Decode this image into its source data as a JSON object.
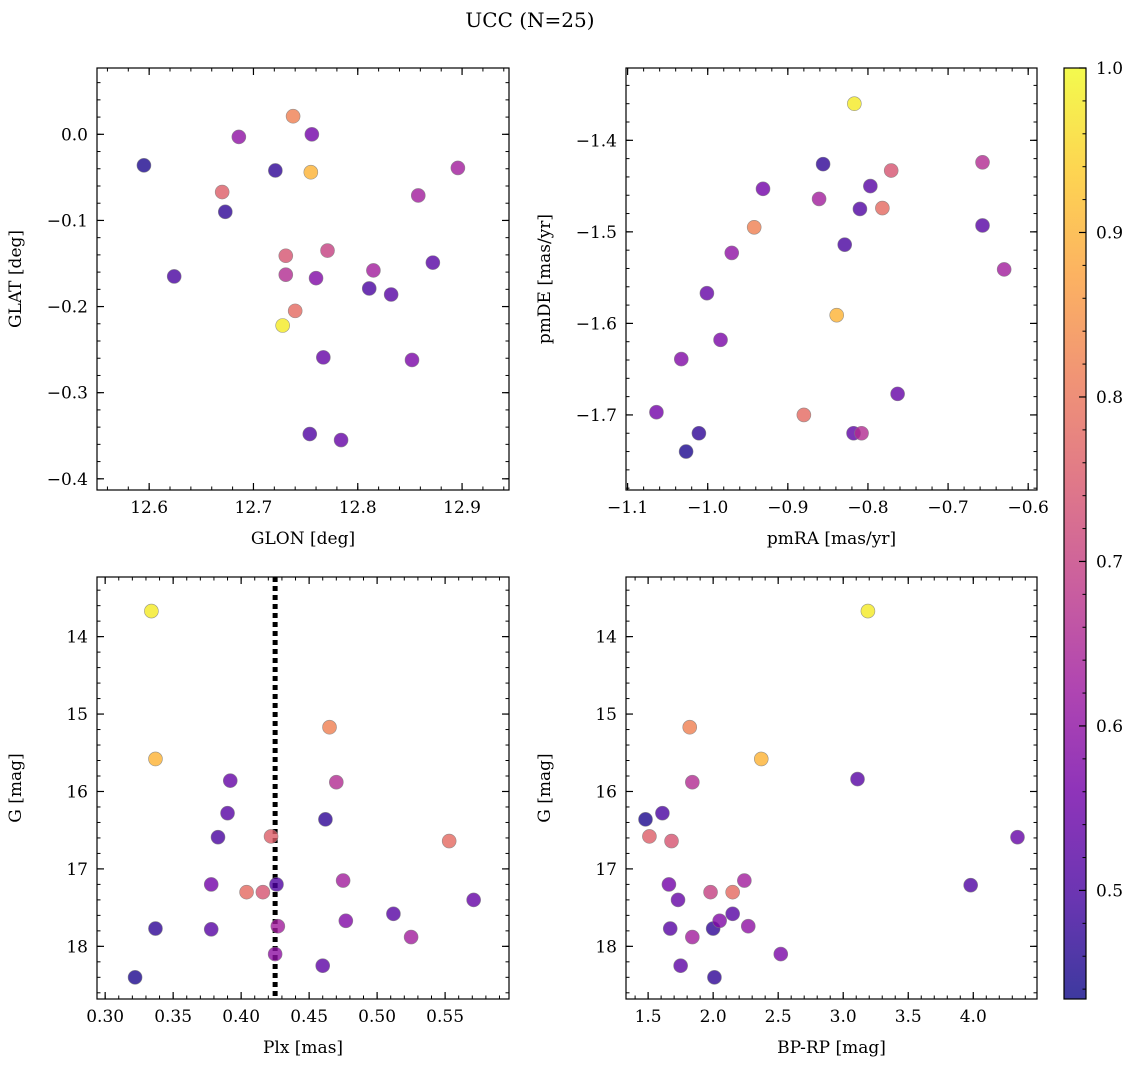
{
  "figure": {
    "title": "UCC (N=25)"
  },
  "colorbar": {
    "range": [
      0.434,
      1.0
    ],
    "ticks": [
      0.5,
      0.6,
      0.7,
      0.8,
      0.9,
      1.0
    ],
    "tick_labels": [
      "0.5",
      "0.6",
      "0.7",
      "0.8",
      "0.9",
      "1.0"
    ],
    "colormap": "plasma",
    "colormap_stops": [
      "#0d0887",
      "#46039f",
      "#7201a8",
      "#9c179e",
      "#bd3786",
      "#d8576b",
      "#ed7953",
      "#fb9f3a",
      "#fdca26",
      "#f0f921"
    ],
    "marker_alpha": 0.8
  },
  "chart_data": [
    {
      "type": "scatter",
      "name": "glon-glat",
      "xlabel": "GLON [deg]",
      "ylabel": "GLAT [deg]",
      "xlim": [
        12.55,
        12.945
      ],
      "ylim": [
        -0.413,
        0.077
      ],
      "xticks": [
        12.6,
        12.7,
        12.8,
        12.9
      ],
      "xtick_labels": [
        "12.6",
        "12.7",
        "12.8",
        "12.9"
      ],
      "yticks": [
        0.0,
        -0.1,
        -0.2,
        -0.3,
        -0.4
      ],
      "ytick_labels": [
        "0.0",
        "−0.1",
        "−0.2",
        "−0.3",
        "−0.4"
      ],
      "points": [
        {
          "x": 12.595,
          "y": -0.036,
          "c": 0.45
        },
        {
          "x": 12.624,
          "y": -0.165,
          "c": 0.5
        },
        {
          "x": 12.673,
          "y": -0.09,
          "c": 0.47
        },
        {
          "x": 12.67,
          "y": -0.067,
          "c": 0.76
        },
        {
          "x": 12.686,
          "y": -0.003,
          "c": 0.6
        },
        {
          "x": 12.721,
          "y": -0.042,
          "c": 0.47
        },
        {
          "x": 12.728,
          "y": -0.222,
          "c": 0.98
        },
        {
          "x": 12.731,
          "y": -0.141,
          "c": 0.74
        },
        {
          "x": 12.731,
          "y": -0.163,
          "c": 0.66
        },
        {
          "x": 12.738,
          "y": 0.021,
          "c": 0.82
        },
        {
          "x": 12.74,
          "y": -0.205,
          "c": 0.78
        },
        {
          "x": 12.755,
          "y": -0.044,
          "c": 0.9
        },
        {
          "x": 12.756,
          "y": 0.0,
          "c": 0.56
        },
        {
          "x": 12.754,
          "y": -0.348,
          "c": 0.51
        },
        {
          "x": 12.76,
          "y": -0.167,
          "c": 0.58
        },
        {
          "x": 12.767,
          "y": -0.259,
          "c": 0.54
        },
        {
          "x": 12.771,
          "y": -0.135,
          "c": 0.7
        },
        {
          "x": 12.784,
          "y": -0.355,
          "c": 0.54
        },
        {
          "x": 12.811,
          "y": -0.179,
          "c": 0.5
        },
        {
          "x": 12.815,
          "y": -0.158,
          "c": 0.63
        },
        {
          "x": 12.832,
          "y": -0.186,
          "c": 0.52
        },
        {
          "x": 12.852,
          "y": -0.262,
          "c": 0.57
        },
        {
          "x": 12.858,
          "y": -0.071,
          "c": 0.63
        },
        {
          "x": 12.872,
          "y": -0.149,
          "c": 0.52
        },
        {
          "x": 12.896,
          "y": -0.039,
          "c": 0.63
        }
      ]
    },
    {
      "type": "scatter",
      "name": "pmra-pmde",
      "xlabel": "pmRA [mas/yr]",
      "ylabel": "pmDE [mas/yr]",
      "xlim": [
        -1.102,
        -0.589
      ],
      "ylim": [
        -1.782,
        -1.321
      ],
      "xticks": [
        -1.1,
        -1.0,
        -0.9,
        -0.8,
        -0.7,
        -0.6
      ],
      "xtick_labels": [
        "−1.1",
        "−1.0",
        "−0.9",
        "−0.8",
        "−0.7",
        "−0.6"
      ],
      "yticks": [
        -1.4,
        -1.5,
        -1.6,
        -1.7
      ],
      "ytick_labels": [
        "−1.4",
        "−1.5",
        "−1.6",
        "−1.7"
      ],
      "points": [
        {
          "x": -0.817,
          "y": -1.36,
          "c": 0.98
        },
        {
          "x": -0.856,
          "y": -1.426,
          "c": 0.47
        },
        {
          "x": -0.771,
          "y": -1.433,
          "c": 0.74
        },
        {
          "x": -0.657,
          "y": -1.424,
          "c": 0.66
        },
        {
          "x": -0.931,
          "y": -1.453,
          "c": 0.56
        },
        {
          "x": -0.861,
          "y": -1.464,
          "c": 0.63
        },
        {
          "x": -0.797,
          "y": -1.45,
          "c": 0.52
        },
        {
          "x": -0.81,
          "y": -1.475,
          "c": 0.51
        },
        {
          "x": -0.782,
          "y": -1.474,
          "c": 0.78
        },
        {
          "x": -0.942,
          "y": -1.495,
          "c": 0.82
        },
        {
          "x": -0.657,
          "y": -1.493,
          "c": 0.52
        },
        {
          "x": -0.829,
          "y": -1.514,
          "c": 0.5
        },
        {
          "x": -0.97,
          "y": -1.523,
          "c": 0.6
        },
        {
          "x": -0.63,
          "y": -1.541,
          "c": 0.63
        },
        {
          "x": -1.001,
          "y": -1.567,
          "c": 0.54
        },
        {
          "x": -0.839,
          "y": -1.591,
          "c": 0.9
        },
        {
          "x": -0.984,
          "y": -1.618,
          "c": 0.57
        },
        {
          "x": -1.033,
          "y": -1.639,
          "c": 0.58
        },
        {
          "x": -0.763,
          "y": -1.677,
          "c": 0.54
        },
        {
          "x": -1.064,
          "y": -1.697,
          "c": 0.56
        },
        {
          "x": -0.88,
          "y": -1.7,
          "c": 0.78
        },
        {
          "x": -1.011,
          "y": -1.72,
          "c": 0.47
        },
        {
          "x": -0.818,
          "y": -1.72,
          "c": 0.53
        },
        {
          "x": -0.808,
          "y": -1.72,
          "c": 0.66
        },
        {
          "x": -1.027,
          "y": -1.74,
          "c": 0.45
        }
      ]
    },
    {
      "type": "scatter",
      "name": "plx-g",
      "xlabel": "Plx [mas]",
      "ylabel": "G [mag]",
      "xlim": [
        0.294,
        0.597
      ],
      "ylim": [
        18.68,
        13.23
      ],
      "y_inverted": true,
      "xticks": [
        0.3,
        0.35,
        0.4,
        0.45,
        0.5,
        0.55
      ],
      "xtick_labels": [
        "0.30",
        "0.35",
        "0.40",
        "0.45",
        "0.50",
        "0.55"
      ],
      "yticks": [
        14,
        15,
        16,
        17,
        18
      ],
      "ytick_labels": [
        "14",
        "15",
        "16",
        "17",
        "18"
      ],
      "vline": {
        "x": 0.425,
        "style": "dotted",
        "color": "#000000"
      },
      "points": [
        {
          "x": 0.334,
          "y": 13.67,
          "c": 0.98
        },
        {
          "x": 0.465,
          "y": 15.17,
          "c": 0.82
        },
        {
          "x": 0.337,
          "y": 15.58,
          "c": 0.9
        },
        {
          "x": 0.392,
          "y": 15.86,
          "c": 0.54
        },
        {
          "x": 0.47,
          "y": 15.88,
          "c": 0.66
        },
        {
          "x": 0.39,
          "y": 16.28,
          "c": 0.52
        },
        {
          "x": 0.462,
          "y": 16.36,
          "c": 0.47
        },
        {
          "x": 0.383,
          "y": 16.59,
          "c": 0.5
        },
        {
          "x": 0.422,
          "y": 16.58,
          "c": 0.76
        },
        {
          "x": 0.553,
          "y": 16.64,
          "c": 0.78
        },
        {
          "x": 0.475,
          "y": 17.15,
          "c": 0.63
        },
        {
          "x": 0.378,
          "y": 17.2,
          "c": 0.56
        },
        {
          "x": 0.426,
          "y": 17.2,
          "c": 0.51
        },
        {
          "x": 0.404,
          "y": 17.3,
          "c": 0.78
        },
        {
          "x": 0.416,
          "y": 17.3,
          "c": 0.74
        },
        {
          "x": 0.571,
          "y": 17.4,
          "c": 0.54
        },
        {
          "x": 0.512,
          "y": 17.58,
          "c": 0.52
        },
        {
          "x": 0.477,
          "y": 17.67,
          "c": 0.58
        },
        {
          "x": 0.427,
          "y": 17.74,
          "c": 0.63
        },
        {
          "x": 0.337,
          "y": 17.77,
          "c": 0.47
        },
        {
          "x": 0.378,
          "y": 17.78,
          "c": 0.52
        },
        {
          "x": 0.525,
          "y": 17.88,
          "c": 0.63
        },
        {
          "x": 0.425,
          "y": 18.1,
          "c": 0.6
        },
        {
          "x": 0.46,
          "y": 18.25,
          "c": 0.53
        },
        {
          "x": 0.322,
          "y": 18.4,
          "c": 0.45
        }
      ]
    },
    {
      "type": "scatter",
      "name": "bprp-g",
      "xlabel": "BP-RP [mag]",
      "ylabel": "G [mag]",
      "xlim": [
        1.33,
        4.49
      ],
      "ylim": [
        18.68,
        13.23
      ],
      "y_inverted": true,
      "xticks": [
        1.5,
        2.0,
        2.5,
        3.0,
        3.5,
        4.0
      ],
      "xtick_labels": [
        "1.5",
        "2.0",
        "2.5",
        "3.0",
        "3.5",
        "4.0"
      ],
      "yticks": [
        14,
        15,
        16,
        17,
        18
      ],
      "ytick_labels": [
        "14",
        "15",
        "16",
        "17",
        "18"
      ],
      "points": [
        {
          "x": 3.19,
          "y": 13.67,
          "c": 0.98
        },
        {
          "x": 1.82,
          "y": 15.17,
          "c": 0.82
        },
        {
          "x": 2.37,
          "y": 15.58,
          "c": 0.9
        },
        {
          "x": 3.11,
          "y": 15.84,
          "c": 0.52
        },
        {
          "x": 1.84,
          "y": 15.88,
          "c": 0.66
        },
        {
          "x": 1.61,
          "y": 16.28,
          "c": 0.5
        },
        {
          "x": 1.48,
          "y": 16.36,
          "c": 0.45
        },
        {
          "x": 1.51,
          "y": 16.58,
          "c": 0.76
        },
        {
          "x": 4.34,
          "y": 16.59,
          "c": 0.54
        },
        {
          "x": 1.68,
          "y": 16.64,
          "c": 0.74
        },
        {
          "x": 2.24,
          "y": 17.15,
          "c": 0.63
        },
        {
          "x": 1.66,
          "y": 17.2,
          "c": 0.56
        },
        {
          "x": 3.98,
          "y": 17.21,
          "c": 0.51
        },
        {
          "x": 1.98,
          "y": 17.3,
          "c": 0.7
        },
        {
          "x": 2.15,
          "y": 17.3,
          "c": 0.78
        },
        {
          "x": 1.73,
          "y": 17.4,
          "c": 0.54
        },
        {
          "x": 2.15,
          "y": 17.58,
          "c": 0.52
        },
        {
          "x": 2.05,
          "y": 17.67,
          "c": 0.58
        },
        {
          "x": 2.27,
          "y": 17.74,
          "c": 0.6
        },
        {
          "x": 1.67,
          "y": 17.77,
          "c": 0.52
        },
        {
          "x": 2.0,
          "y": 17.77,
          "c": 0.47
        },
        {
          "x": 1.84,
          "y": 17.88,
          "c": 0.63
        },
        {
          "x": 2.52,
          "y": 18.1,
          "c": 0.57
        },
        {
          "x": 1.75,
          "y": 18.25,
          "c": 0.53
        },
        {
          "x": 2.01,
          "y": 18.4,
          "c": 0.47
        }
      ]
    }
  ]
}
